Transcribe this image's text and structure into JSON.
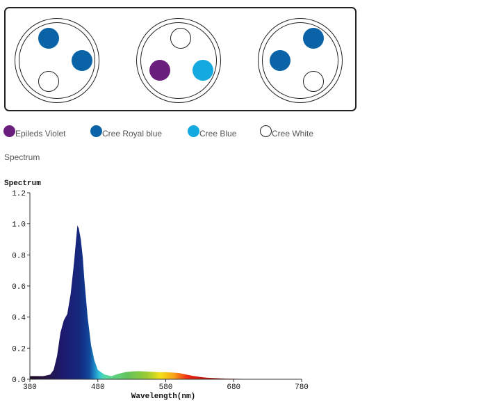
{
  "fixtures": [
    {
      "leds": [
        "royal_blue",
        "royal_blue",
        "white"
      ]
    },
    {
      "leds": [
        "white",
        "violet",
        "blue"
      ]
    },
    {
      "leds": [
        "royal_blue",
        "royal_blue",
        "white"
      ]
    }
  ],
  "legend": [
    {
      "key": "violet",
      "label": "Epileds Violet",
      "color": "#6a1f7d"
    },
    {
      "key": "royal_blue",
      "label": "Cree Royal blue",
      "color": "#0a63a6"
    },
    {
      "key": "blue",
      "label": "Cree Blue",
      "color": "#14a9df"
    },
    {
      "key": "white",
      "label": "Cree White",
      "color": "#ffffff"
    }
  ],
  "section_heading": "Spectrum",
  "chart_data": {
    "type": "area",
    "title": "Spectrum",
    "xlabel": "Wavelength(nm)",
    "ylabel": "",
    "xlim": [
      380,
      780
    ],
    "ylim": [
      0,
      1.2
    ],
    "x_ticks": [
      380,
      480,
      580,
      680,
      780
    ],
    "y_ticks": [
      "0.0",
      "0.2",
      "0.4",
      "0.6",
      "0.8",
      "1.0",
      "1.2"
    ],
    "fill": "visible-spectrum colour gradient",
    "grid": false,
    "series": [
      {
        "x": [
          380,
          390,
          400,
          410,
          415,
          420,
          425,
          430,
          435,
          440,
          445,
          448,
          450,
          452,
          455,
          458,
          460,
          465,
          470,
          475,
          480,
          490,
          500,
          510,
          520,
          530,
          540,
          550,
          560,
          570,
          580,
          590,
          600,
          610,
          620,
          630,
          640,
          650,
          660,
          670,
          680,
          700,
          720,
          740,
          760,
          780
        ],
        "y": [
          0.02,
          0.02,
          0.02,
          0.03,
          0.06,
          0.15,
          0.3,
          0.38,
          0.42,
          0.55,
          0.75,
          0.9,
          0.99,
          0.97,
          0.9,
          0.78,
          0.65,
          0.4,
          0.22,
          0.12,
          0.06,
          0.03,
          0.02,
          0.035,
          0.045,
          0.05,
          0.052,
          0.05,
          0.048,
          0.045,
          0.045,
          0.043,
          0.04,
          0.03,
          0.022,
          0.015,
          0.01,
          0.008,
          0.006,
          0.004,
          0.003,
          0.002,
          0.001,
          0.001,
          0.0,
          0.0
        ]
      }
    ]
  }
}
